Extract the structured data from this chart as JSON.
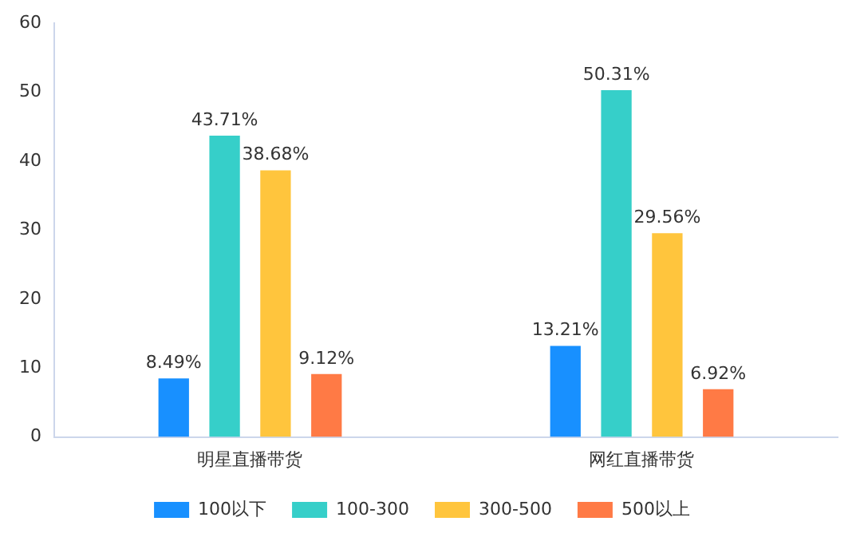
{
  "chart_data": {
    "type": "bar",
    "categories": [
      "明星直播带货",
      "网红直播带货"
    ],
    "series": [
      {
        "name": "100以下",
        "color": "#1890ff",
        "values": [
          8.49,
          13.21
        ],
        "value_labels": [
          "8.49%",
          "13.21%"
        ]
      },
      {
        "name": "100-300",
        "color": "#36cfc9",
        "values": [
          43.71,
          50.31
        ],
        "value_labels": [
          "43.71%",
          "50.31%"
        ]
      },
      {
        "name": "300-500",
        "color": "#ffc53d",
        "values": [
          38.68,
          29.56
        ],
        "value_labels": [
          "38.68%",
          "29.56%"
        ]
      },
      {
        "name": "500以上",
        "color": "#ff7a45",
        "values": [
          9.12,
          6.92
        ],
        "value_labels": [
          "9.12%",
          "6.92%"
        ]
      }
    ],
    "ylim": [
      0,
      60
    ],
    "yticks": [
      0,
      10,
      20,
      30,
      40,
      50,
      60
    ],
    "grid": false,
    "legend": "bottom"
  }
}
